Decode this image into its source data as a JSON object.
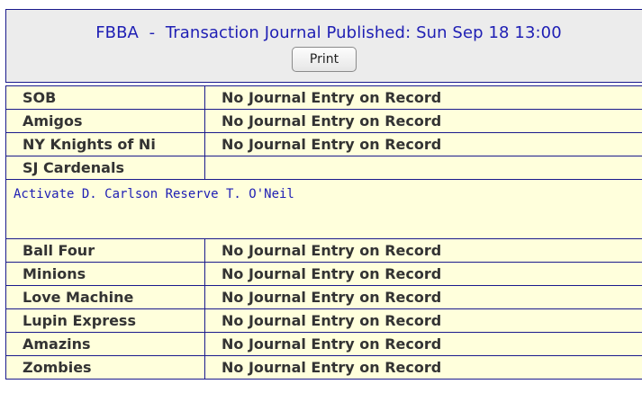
{
  "header": {
    "title": "FBBA  -  Transaction Journal Published: Sun Sep 18 13:00",
    "print_label": "Print"
  },
  "rows_top": [
    {
      "team": "SOB",
      "entry": "No Journal Entry on Record"
    },
    {
      "team": "Amigos",
      "entry": "No Journal Entry on Record"
    },
    {
      "team": "NY Knights of Ni",
      "entry": "No Journal Entry on Record"
    },
    {
      "team": "SJ Cardenals",
      "entry": ""
    }
  ],
  "detail": {
    "text": "Activate D. Carlson Reserve T. O'Neil"
  },
  "rows_bottom": [
    {
      "team": "Ball Four",
      "entry": "No Journal Entry on Record"
    },
    {
      "team": "Minions",
      "entry": "No Journal Entry on Record"
    },
    {
      "team": "Love Machine",
      "entry": "No Journal Entry on Record"
    },
    {
      "team": "Lupin Express",
      "entry": "No Journal Entry on Record"
    },
    {
      "team": "Amazins",
      "entry": "No Journal Entry on Record"
    },
    {
      "team": "Zombies",
      "entry": "No Journal Entry on Record"
    }
  ]
}
